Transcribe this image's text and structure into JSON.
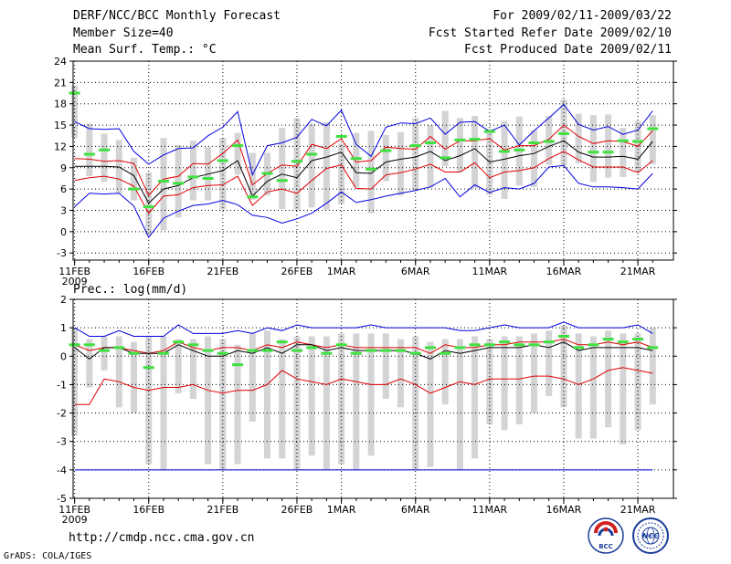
{
  "header": {
    "left": [
      "DERF/NCC/BCC Monthly Forecast",
      "Member Size=40",
      "Mean Surf. Temp.: °C"
    ],
    "right": [
      "For 2009/02/11-2009/03/22",
      "Fcst Started Refer Date 2009/02/10",
      "Fcst Produced Date 2009/02/11"
    ]
  },
  "footer": {
    "url": "http://cmdp.ncc.cma.gov.cn",
    "credit": "GrADS: COLA/IGES",
    "logo_bcc": "BCC",
    "logo_ncc": "NCC"
  },
  "colors": {
    "spread": "#d4d4d6",
    "envelope": "#0000e0",
    "percentile": "#e00000",
    "mean": "#000000",
    "observed": "#40e040",
    "grid": "#000000"
  },
  "chart_data": [
    {
      "type": "line",
      "name": "Mean Surf. Temp.",
      "ylabel": "Mean Surf. Temp.: °C",
      "ylim": [
        -4,
        24
      ],
      "yticks": [
        -3,
        0,
        3,
        6,
        9,
        12,
        15,
        18,
        21,
        24
      ],
      "xticks": [
        {
          "day": 1,
          "label": "11FEB",
          "sub": "2009"
        },
        {
          "day": 6,
          "label": "16FEB"
        },
        {
          "day": 11,
          "label": "21FEB"
        },
        {
          "day": 16,
          "label": "26FEB"
        },
        {
          "day": 19,
          "label": "1MAR"
        },
        {
          "day": 24,
          "label": "6MAR"
        },
        {
          "day": 29,
          "label": "11MAR"
        },
        {
          "day": 34,
          "label": "16MAR"
        },
        {
          "day": 39,
          "label": "21MAR"
        }
      ],
      "days": [
        1,
        2,
        3,
        4,
        5,
        6,
        7,
        8,
        9,
        10,
        11,
        12,
        13,
        14,
        15,
        16,
        17,
        18,
        19,
        20,
        21,
        22,
        23,
        24,
        25,
        26,
        27,
        28,
        29,
        30,
        31,
        32,
        33,
        34,
        35,
        36,
        37,
        38,
        39,
        40
      ],
      "series": [
        {
          "name": "max",
          "values": [
            15.5,
            14.5,
            14.4,
            14.5,
            11.3,
            9.5,
            10.8,
            11.7,
            11.8,
            13.5,
            14.7,
            16.9,
            8.0,
            12.1,
            12.5,
            13.3,
            15.8,
            14.9,
            17.1,
            12.3,
            10.6,
            14.7,
            15.3,
            15.2,
            16.0,
            13.7,
            15.4,
            15.5,
            14.1,
            15.0,
            12.2,
            14.2,
            16.0,
            17.9,
            15.1,
            14.3,
            14.8,
            13.7,
            14.3,
            17.0
          ]
        },
        {
          "name": "p90",
          "values": [
            10.3,
            10.2,
            9.9,
            10.0,
            9.6,
            5.1,
            7.4,
            7.8,
            9.6,
            9.5,
            11.0,
            12.9,
            6.6,
            8.2,
            9.4,
            9.2,
            12.3,
            11.7,
            13.1,
            9.8,
            10.0,
            11.9,
            11.7,
            11.6,
            13.4,
            11.6,
            12.8,
            12.8,
            13.1,
            11.5,
            12.1,
            12.1,
            13.0,
            15.0,
            13.4,
            12.4,
            12.8,
            12.7,
            12.0,
            14.2
          ]
        },
        {
          "name": "mean",
          "values": [
            9.2,
            9.2,
            9.2,
            9.1,
            7.9,
            4.0,
            6.0,
            6.5,
            7.6,
            8.1,
            8.6,
            10.0,
            5.0,
            7.1,
            8.1,
            7.6,
            10.0,
            10.5,
            11.2,
            8.3,
            8.2,
            9.8,
            10.2,
            10.5,
            11.3,
            10.0,
            10.7,
            11.7,
            9.8,
            10.2,
            10.7,
            11.0,
            12.0,
            12.8,
            11.2,
            10.5,
            10.5,
            10.6,
            10.2,
            12.7
          ]
        },
        {
          "name": "p10",
          "values": [
            7.2,
            7.6,
            7.8,
            7.4,
            6.4,
            2.6,
            5.0,
            5.2,
            6.2,
            6.5,
            6.6,
            7.8,
            3.7,
            5.6,
            6.0,
            5.4,
            7.2,
            8.9,
            9.4,
            6.1,
            6.0,
            8.0,
            8.3,
            8.8,
            9.5,
            8.4,
            8.4,
            9.7,
            7.6,
            8.4,
            8.6,
            9.0,
            10.3,
            11.3,
            10.1,
            9.1,
            9.1,
            9.1,
            8.3,
            10.0
          ]
        },
        {
          "name": "min",
          "values": [
            3.5,
            5.4,
            5.3,
            5.4,
            3.6,
            -0.8,
            1.9,
            2.9,
            3.7,
            3.9,
            4.4,
            3.8,
            2.3,
            2.0,
            1.2,
            1.8,
            2.6,
            4.0,
            5.6,
            4.1,
            4.5,
            5.0,
            5.4,
            5.8,
            6.3,
            7.5,
            4.9,
            6.6,
            5.5,
            6.2,
            6.0,
            6.8,
            9.1,
            9.3,
            6.8,
            6.3,
            6.3,
            6.2,
            6.0,
            8.2
          ]
        },
        {
          "name": "obs",
          "values": [
            19.5,
            10.9,
            11.5,
            null,
            6.0,
            3.5,
            7.1,
            6.8,
            7.7,
            7.5,
            10.0,
            12.1,
            4.9,
            8.2,
            7.2,
            9.9,
            10.9,
            null,
            13.4,
            10.3,
            8.8,
            11.4,
            null,
            12.1,
            12.5,
            10.4,
            12.9,
            13.0,
            14.1,
            11.3,
            11.5,
            12.5,
            12.7,
            13.8,
            null,
            11.2,
            11.2,
            12.8,
            12.7,
            14.5
          ]
        },
        {
          "name": "bar_top",
          "values": [
            20.6,
            15.2,
            13.8,
            12.9,
            10.4,
            8.3,
            13.2,
            12.2,
            12.8,
            11.9,
            13.2,
            13.9,
            11.1,
            11.1,
            14.6,
            16.0,
            15.2,
            15.4,
            12.4,
            13.9,
            14.2,
            13.6,
            14.0,
            16.0,
            15.0,
            17.0,
            16.0,
            16.3,
            14.5,
            15.6,
            16.2,
            14.3,
            16.3,
            18.6,
            16.6,
            16.4,
            16.5,
            14.6,
            15.6,
            16.4
          ]
        },
        {
          "name": "bar_bottom",
          "values": [
            13.2,
            7.8,
            7.0,
            5.4,
            4.4,
            -0.5,
            0.2,
            2.0,
            4.4,
            4.4,
            3.1,
            8.0,
            4.5,
            5.1,
            3.2,
            3.0,
            3.4,
            3.1,
            3.9,
            6.3,
            2.6,
            7.1,
            5.1,
            5.9,
            6.2,
            9.2,
            8.4,
            6.1,
            5.2,
            4.6,
            6.5,
            6.3,
            9.4,
            9.3,
            9.6,
            7.0,
            7.6,
            7.7,
            8.5,
            9.5
          ]
        }
      ]
    },
    {
      "type": "line",
      "name": "Prec.: log(mm/d)",
      "ylabel": "Prec.: log(mm/d)",
      "ylim": [
        -5,
        2
      ],
      "yticks": [
        -5,
        -4,
        -3,
        -2,
        -1,
        0,
        1,
        2
      ],
      "xticks": [
        {
          "day": 1,
          "label": "11FEB",
          "sub": "2009"
        },
        {
          "day": 6,
          "label": "16FEB"
        },
        {
          "day": 11,
          "label": "21FEB"
        },
        {
          "day": 16,
          "label": "26FEB"
        },
        {
          "day": 19,
          "label": "1MAR"
        },
        {
          "day": 24,
          "label": "6MAR"
        },
        {
          "day": 29,
          "label": "11MAR"
        },
        {
          "day": 34,
          "label": "16MAR"
        },
        {
          "day": 39,
          "label": "21MAR"
        }
      ],
      "days": [
        1,
        2,
        3,
        4,
        5,
        6,
        7,
        8,
        9,
        10,
        11,
        12,
        13,
        14,
        15,
        16,
        17,
        18,
        19,
        20,
        21,
        22,
        23,
        24,
        25,
        26,
        27,
        28,
        29,
        30,
        31,
        32,
        33,
        34,
        35,
        36,
        37,
        38,
        39,
        40
      ],
      "series": [
        {
          "name": "max",
          "values": [
            1.0,
            0.7,
            0.7,
            0.9,
            0.7,
            0.7,
            0.7,
            1.1,
            0.8,
            0.8,
            0.8,
            0.9,
            0.8,
            1.0,
            0.9,
            1.1,
            1.0,
            1.0,
            1.0,
            1.0,
            1.1,
            1.0,
            1.0,
            1.0,
            1.0,
            1.0,
            0.9,
            0.9,
            1.0,
            1.1,
            1.0,
            1.0,
            1.0,
            1.2,
            1.0,
            1.0,
            1.0,
            1.0,
            1.1,
            0.8
          ]
        },
        {
          "name": "p90",
          "values": [
            0.4,
            0.2,
            0.3,
            0.3,
            0.2,
            0.1,
            0.2,
            0.5,
            0.3,
            0.2,
            0.3,
            0.3,
            0.2,
            0.4,
            0.3,
            0.5,
            0.4,
            0.3,
            0.4,
            0.3,
            0.3,
            0.3,
            0.3,
            0.3,
            0.1,
            0.4,
            0.3,
            0.3,
            0.4,
            0.4,
            0.5,
            0.5,
            0.5,
            0.6,
            0.4,
            0.4,
            0.5,
            0.4,
            0.5,
            0.3
          ]
        },
        {
          "name": "mean",
          "values": [
            0.3,
            -0.1,
            0.3,
            0.3,
            0.1,
            0.1,
            0.1,
            0.4,
            0.2,
            0.0,
            0.0,
            0.2,
            0.1,
            0.3,
            0.1,
            0.4,
            0.4,
            0.2,
            0.3,
            0.2,
            0.2,
            0.2,
            0.2,
            0.1,
            -0.1,
            0.2,
            0.1,
            0.2,
            0.3,
            0.3,
            0.3,
            0.4,
            0.3,
            0.5,
            0.2,
            0.3,
            0.3,
            0.3,
            0.3,
            0.2
          ]
        },
        {
          "name": "p10",
          "values": [
            -1.7,
            -1.7,
            -0.8,
            -0.9,
            -1.1,
            -1.2,
            -1.1,
            -1.1,
            -1.0,
            -1.2,
            -1.3,
            -1.2,
            -1.2,
            -1.0,
            -0.5,
            -0.8,
            -0.9,
            -1.0,
            -0.8,
            -0.9,
            -1.0,
            -1.0,
            -0.8,
            -1.0,
            -1.3,
            -1.1,
            -0.9,
            -1.0,
            -0.8,
            -0.8,
            -0.8,
            -0.7,
            -0.7,
            -0.8,
            -1.0,
            -0.8,
            -0.5,
            -0.4,
            -0.5,
            -0.6
          ]
        },
        {
          "name": "min",
          "values": [
            -4.0,
            -4.0,
            -4.0,
            -4.0,
            -4.0,
            -4.0,
            -4.0,
            -4.0,
            -4.0,
            -4.0,
            -4.0,
            -4.0,
            -4.0,
            -4.0,
            -4.0,
            -4.0,
            -4.0,
            -4.0,
            -4.0,
            -4.0,
            -4.0,
            -4.0,
            -4.0,
            -4.0,
            -4.0,
            -4.0,
            -4.0,
            -4.0,
            -4.0,
            -4.0,
            -4.0,
            -4.0,
            -4.0,
            -4.0,
            -4.0,
            -4.0,
            -4.0,
            -4.0,
            -4.0,
            -4.0
          ]
        },
        {
          "name": "obs",
          "values": [
            0.4,
            0.4,
            0.2,
            0.3,
            0.1,
            -0.4,
            0.1,
            0.5,
            0.4,
            0.2,
            0.1,
            -0.3,
            0.2,
            0.2,
            0.5,
            0.2,
            0.3,
            0.1,
            0.4,
            0.1,
            0.2,
            0.2,
            0.2,
            0.1,
            0.3,
            0.1,
            0.3,
            0.4,
            0.4,
            0.5,
            0.4,
            0.4,
            0.5,
            0.7,
            0.3,
            0.4,
            0.6,
            0.5,
            0.6,
            0.3
          ]
        },
        {
          "name": "bar_top",
          "values": [
            1.0,
            0.6,
            0.7,
            0.7,
            0.5,
            0.7,
            0.7,
            0.6,
            0.6,
            0.7,
            0.6,
            0.4,
            0.8,
            0.9,
            0.6,
            0.7,
            0.7,
            0.7,
            0.8,
            0.8,
            0.8,
            0.8,
            0.6,
            0.7,
            0.5,
            0.6,
            0.6,
            0.7,
            0.6,
            0.7,
            0.7,
            0.8,
            0.9,
            1.1,
            0.8,
            0.7,
            0.9,
            0.8,
            0.8,
            1.0
          ]
        },
        {
          "name": "bar_bottom",
          "values": [
            -2.8,
            -1.1,
            -0.5,
            -1.8,
            -2.0,
            -3.8,
            -4.0,
            -1.3,
            -1.5,
            -3.8,
            -4.0,
            -3.8,
            -2.3,
            -3.6,
            -3.6,
            -4.0,
            -3.5,
            -4.0,
            -3.8,
            -4.0,
            -3.5,
            -1.5,
            -1.8,
            -4.0,
            -3.9,
            -1.7,
            -4.0,
            -3.6,
            -2.4,
            -2.6,
            -2.4,
            -2.0,
            -1.4,
            -1.8,
            -2.9,
            -2.9,
            -2.5,
            -3.1,
            -2.6,
            -1.7
          ]
        }
      ]
    }
  ]
}
